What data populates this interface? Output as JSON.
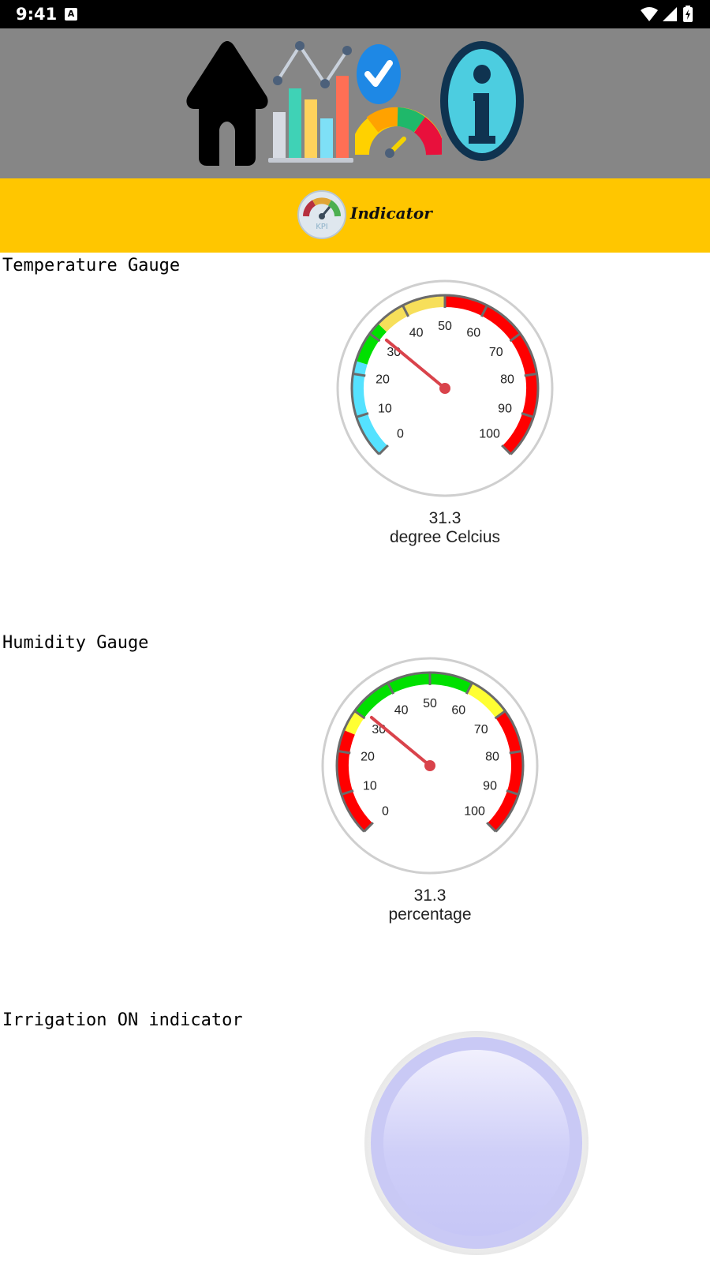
{
  "status_bar": {
    "time": "9:41",
    "notification_glyph": "A",
    "icons": [
      "wifi-icon",
      "cell-signal-icon",
      "battery-charging-icon"
    ]
  },
  "nav_bar": {
    "icons": [
      "home-icon",
      "analytics-chart-icon",
      "gauge-check-icon",
      "info-icon"
    ]
  },
  "title_bar": {
    "logo_badge": "KPI",
    "logo_text": "Indicator"
  },
  "colors": {
    "nav_background": "#868686",
    "title_background": "#ffc600",
    "needle": "#d9434b",
    "indicator_off": "#c8c8f6"
  },
  "sections": {
    "temperature": {
      "label": "Temperature Gauge",
      "gauge": {
        "min": 0,
        "max": 100,
        "value": 31.3,
        "value_text": "31.3",
        "unit": "degree Celcius",
        "ticks": [
          "0",
          "10",
          "20",
          "30",
          "40",
          "50",
          "60",
          "70",
          "80",
          "90",
          "100"
        ],
        "bands": [
          {
            "from": 0,
            "to": 23,
            "color": "#55e2ff"
          },
          {
            "from": 23,
            "to": 33,
            "color": "#00e000"
          },
          {
            "from": 33,
            "to": 50,
            "color": "#f7df5a"
          },
          {
            "from": 50,
            "to": 100,
            "color": "#ff0000"
          }
        ]
      }
    },
    "humidity": {
      "label": "Humidity Gauge",
      "gauge": {
        "min": 0,
        "max": 100,
        "value": 31.3,
        "value_text": "31.3",
        "unit": "percentage",
        "ticks": [
          "0",
          "10",
          "20",
          "30",
          "40",
          "50",
          "60",
          "70",
          "80",
          "90",
          "100"
        ],
        "bands": [
          {
            "from": 0,
            "to": 25,
            "color": "#ff0000"
          },
          {
            "from": 25,
            "to": 30,
            "color": "#ffff33"
          },
          {
            "from": 30,
            "to": 60,
            "color": "#00e000"
          },
          {
            "from": 60,
            "to": 70,
            "color": "#ffff33"
          },
          {
            "from": 70,
            "to": 100,
            "color": "#ff0000"
          }
        ]
      }
    },
    "irrigation": {
      "label": "Irrigation ON indicator",
      "state": "off"
    }
  }
}
